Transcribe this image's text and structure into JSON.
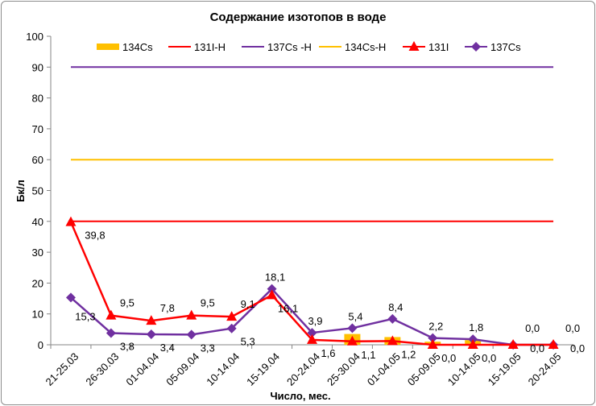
{
  "chart_data": {
    "type": "line",
    "title": "Содержание изотопов в воде",
    "xlabel": "Число, мес.",
    "ylabel": "Бк/л",
    "ylim": [
      0,
      100
    ],
    "yticks": [
      0,
      10,
      20,
      30,
      40,
      50,
      60,
      70,
      80,
      90,
      100
    ],
    "grid": false,
    "legend_position": "top",
    "categories": [
      "21-25.03",
      "26-30.03",
      "01-04.04",
      "05-09.04",
      "10-14.04",
      "15-19.04",
      "20-24.04",
      "25-30.04",
      "01-04.05",
      "05-09.05",
      "10-14.05",
      "15-19.05",
      "20-24.05"
    ],
    "series": [
      {
        "name": "134Cs",
        "kind": "bar",
        "color": "#ffc000",
        "values": [
          0,
          0,
          0,
          0,
          0,
          0,
          0,
          3.5,
          2.5,
          1.0,
          1.5,
          0,
          0
        ]
      },
      {
        "name": "131I-H",
        "kind": "limit",
        "color": "#ff0000",
        "value": 40
      },
      {
        "name": "137Cs -H",
        "kind": "limit",
        "color": "#7030a0",
        "value": 90
      },
      {
        "name": "134Cs-H",
        "kind": "limit",
        "color": "#ffc000",
        "value": 60
      },
      {
        "name": "131I",
        "kind": "line",
        "marker": "triangle",
        "color": "#ff0000",
        "values": [
          39.8,
          9.5,
          7.8,
          9.5,
          9.1,
          16.1,
          1.6,
          1.1,
          1.2,
          0.0,
          0.0,
          0.0,
          0.0
        ],
        "labels": [
          "39,8",
          "9,5",
          "7,8",
          "9,5",
          "9,1",
          "16,1",
          "1,6",
          "1,1",
          "1,2",
          "0,0",
          "0,0",
          "0,0",
          "0,0"
        ]
      },
      {
        "name": "137Cs",
        "kind": "line",
        "marker": "diamond",
        "color": "#7030a0",
        "values": [
          15.3,
          3.8,
          3.4,
          3.3,
          5.3,
          18.1,
          3.9,
          5.4,
          8.4,
          2.2,
          1.8,
          0.0,
          0.0
        ],
        "labels": [
          "15,3",
          "3,8",
          "3,4",
          "3,3",
          "5,3",
          "18,1",
          "3,9",
          "5,4",
          "8,4",
          "2,2",
          "1,8",
          "0,0",
          "0,0"
        ]
      }
    ]
  }
}
